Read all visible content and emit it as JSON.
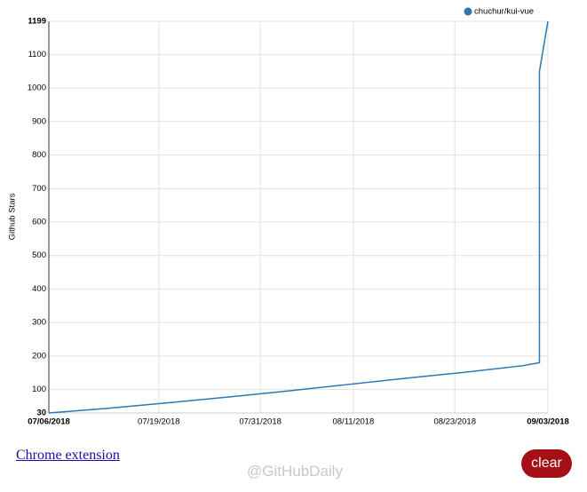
{
  "chart_data": {
    "type": "line",
    "y_label": "Github Stars",
    "x": [
      "07/06/2018",
      "07/13/2018",
      "07/20/2018",
      "07/27/2018",
      "08/03/2018",
      "08/10/2018",
      "08/17/2018",
      "08/24/2018",
      "08/31/2018",
      "09/02/2018",
      "09/02/2018",
      "09/03/2018"
    ],
    "series": [
      {
        "name": "chuchur/kui-vue",
        "color": "#2a78b4",
        "values": [
          30,
          44,
          60,
          77,
          95,
          114,
          133,
          151,
          171,
          180,
          1050,
          1199
        ]
      }
    ],
    "xlim": [
      "07/06/2018",
      "09/03/2018"
    ],
    "xticks": [
      "07/06/2018",
      "07/19/2018",
      "07/31/2018",
      "08/11/2018",
      "08/23/2018",
      "09/03/2018"
    ],
    "ylim": [
      30,
      1199
    ],
    "yticks": [
      30,
      100,
      200,
      300,
      400,
      500,
      600,
      700,
      800,
      900,
      1000,
      1100,
      1199
    ],
    "grid": true,
    "legend": "top-right"
  },
  "link": "Chrome extension",
  "button": "clear",
  "watermark": "@GitHubDaily"
}
